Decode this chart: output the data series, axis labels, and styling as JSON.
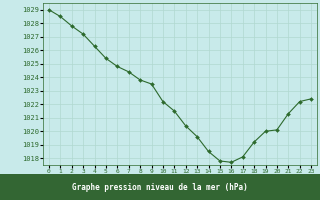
{
  "x": [
    0,
    1,
    2,
    3,
    4,
    5,
    6,
    7,
    8,
    9,
    10,
    11,
    12,
    13,
    14,
    15,
    16,
    17,
    18,
    19,
    20,
    21,
    22,
    23
  ],
  "y": [
    1029.0,
    1028.5,
    1027.8,
    1027.2,
    1026.3,
    1025.4,
    1024.8,
    1024.4,
    1023.8,
    1023.5,
    1022.2,
    1021.5,
    1020.4,
    1019.6,
    1018.5,
    1017.8,
    1017.7,
    1018.1,
    1019.2,
    1020.0,
    1020.1,
    1021.3,
    1022.2,
    1022.4
  ],
  "line_color": "#2d6a2d",
  "marker_color": "#2d6a2d",
  "bg_color": "#c8eaea",
  "grid_color": "#b0d8d0",
  "tick_label_color": "#2d6a2d",
  "xlabel": "Graphe pression niveau de la mer (hPa)",
  "ylim_min": 1017.5,
  "ylim_max": 1029.5,
  "yticks": [
    1018,
    1019,
    1020,
    1021,
    1022,
    1023,
    1024,
    1025,
    1026,
    1027,
    1028,
    1029
  ],
  "xticks": [
    0,
    1,
    2,
    3,
    4,
    5,
    6,
    7,
    8,
    9,
    10,
    11,
    12,
    13,
    14,
    15,
    16,
    17,
    18,
    19,
    20,
    21,
    22,
    23
  ],
  "bottom_label_bg": "#336633",
  "bottom_label_text": "white"
}
